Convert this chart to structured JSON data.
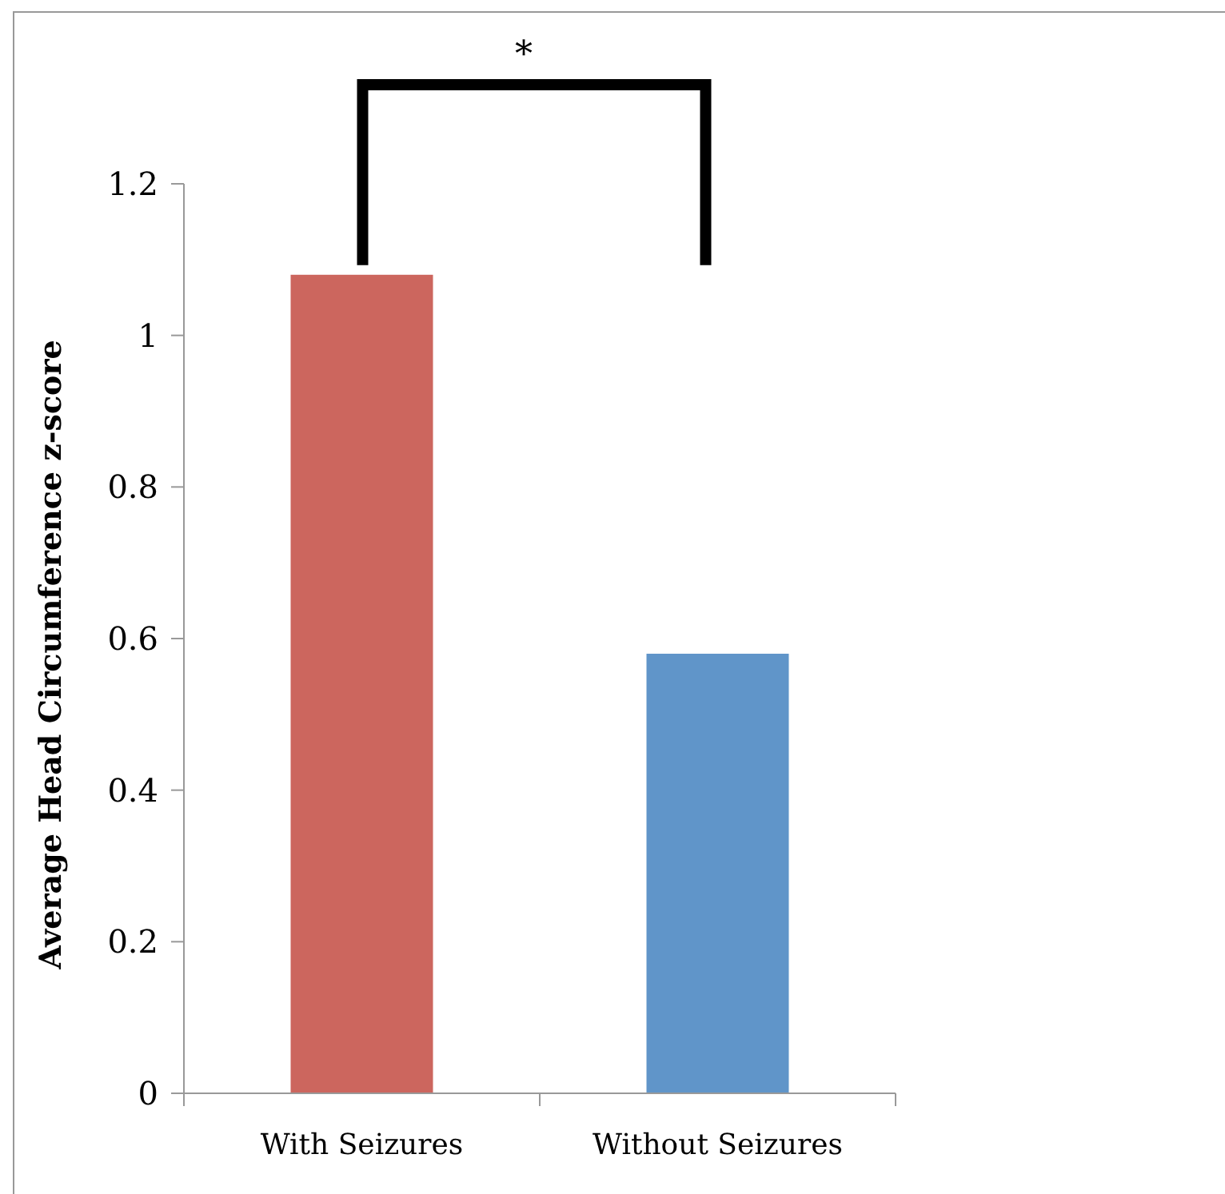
{
  "chart_data": {
    "type": "bar",
    "ylabel": "Average Head Circumference z-score",
    "categories": [
      "With Seizures",
      "Without Seizures"
    ],
    "values": [
      1.08,
      0.58
    ],
    "colors": [
      "#cc665e",
      "#6095c9"
    ],
    "ylim": [
      0,
      1.2
    ],
    "yticks": [
      0,
      0.2,
      0.4,
      0.6,
      0.8,
      1,
      1.2
    ],
    "grid": false,
    "annotations": [
      "*"
    ]
  }
}
